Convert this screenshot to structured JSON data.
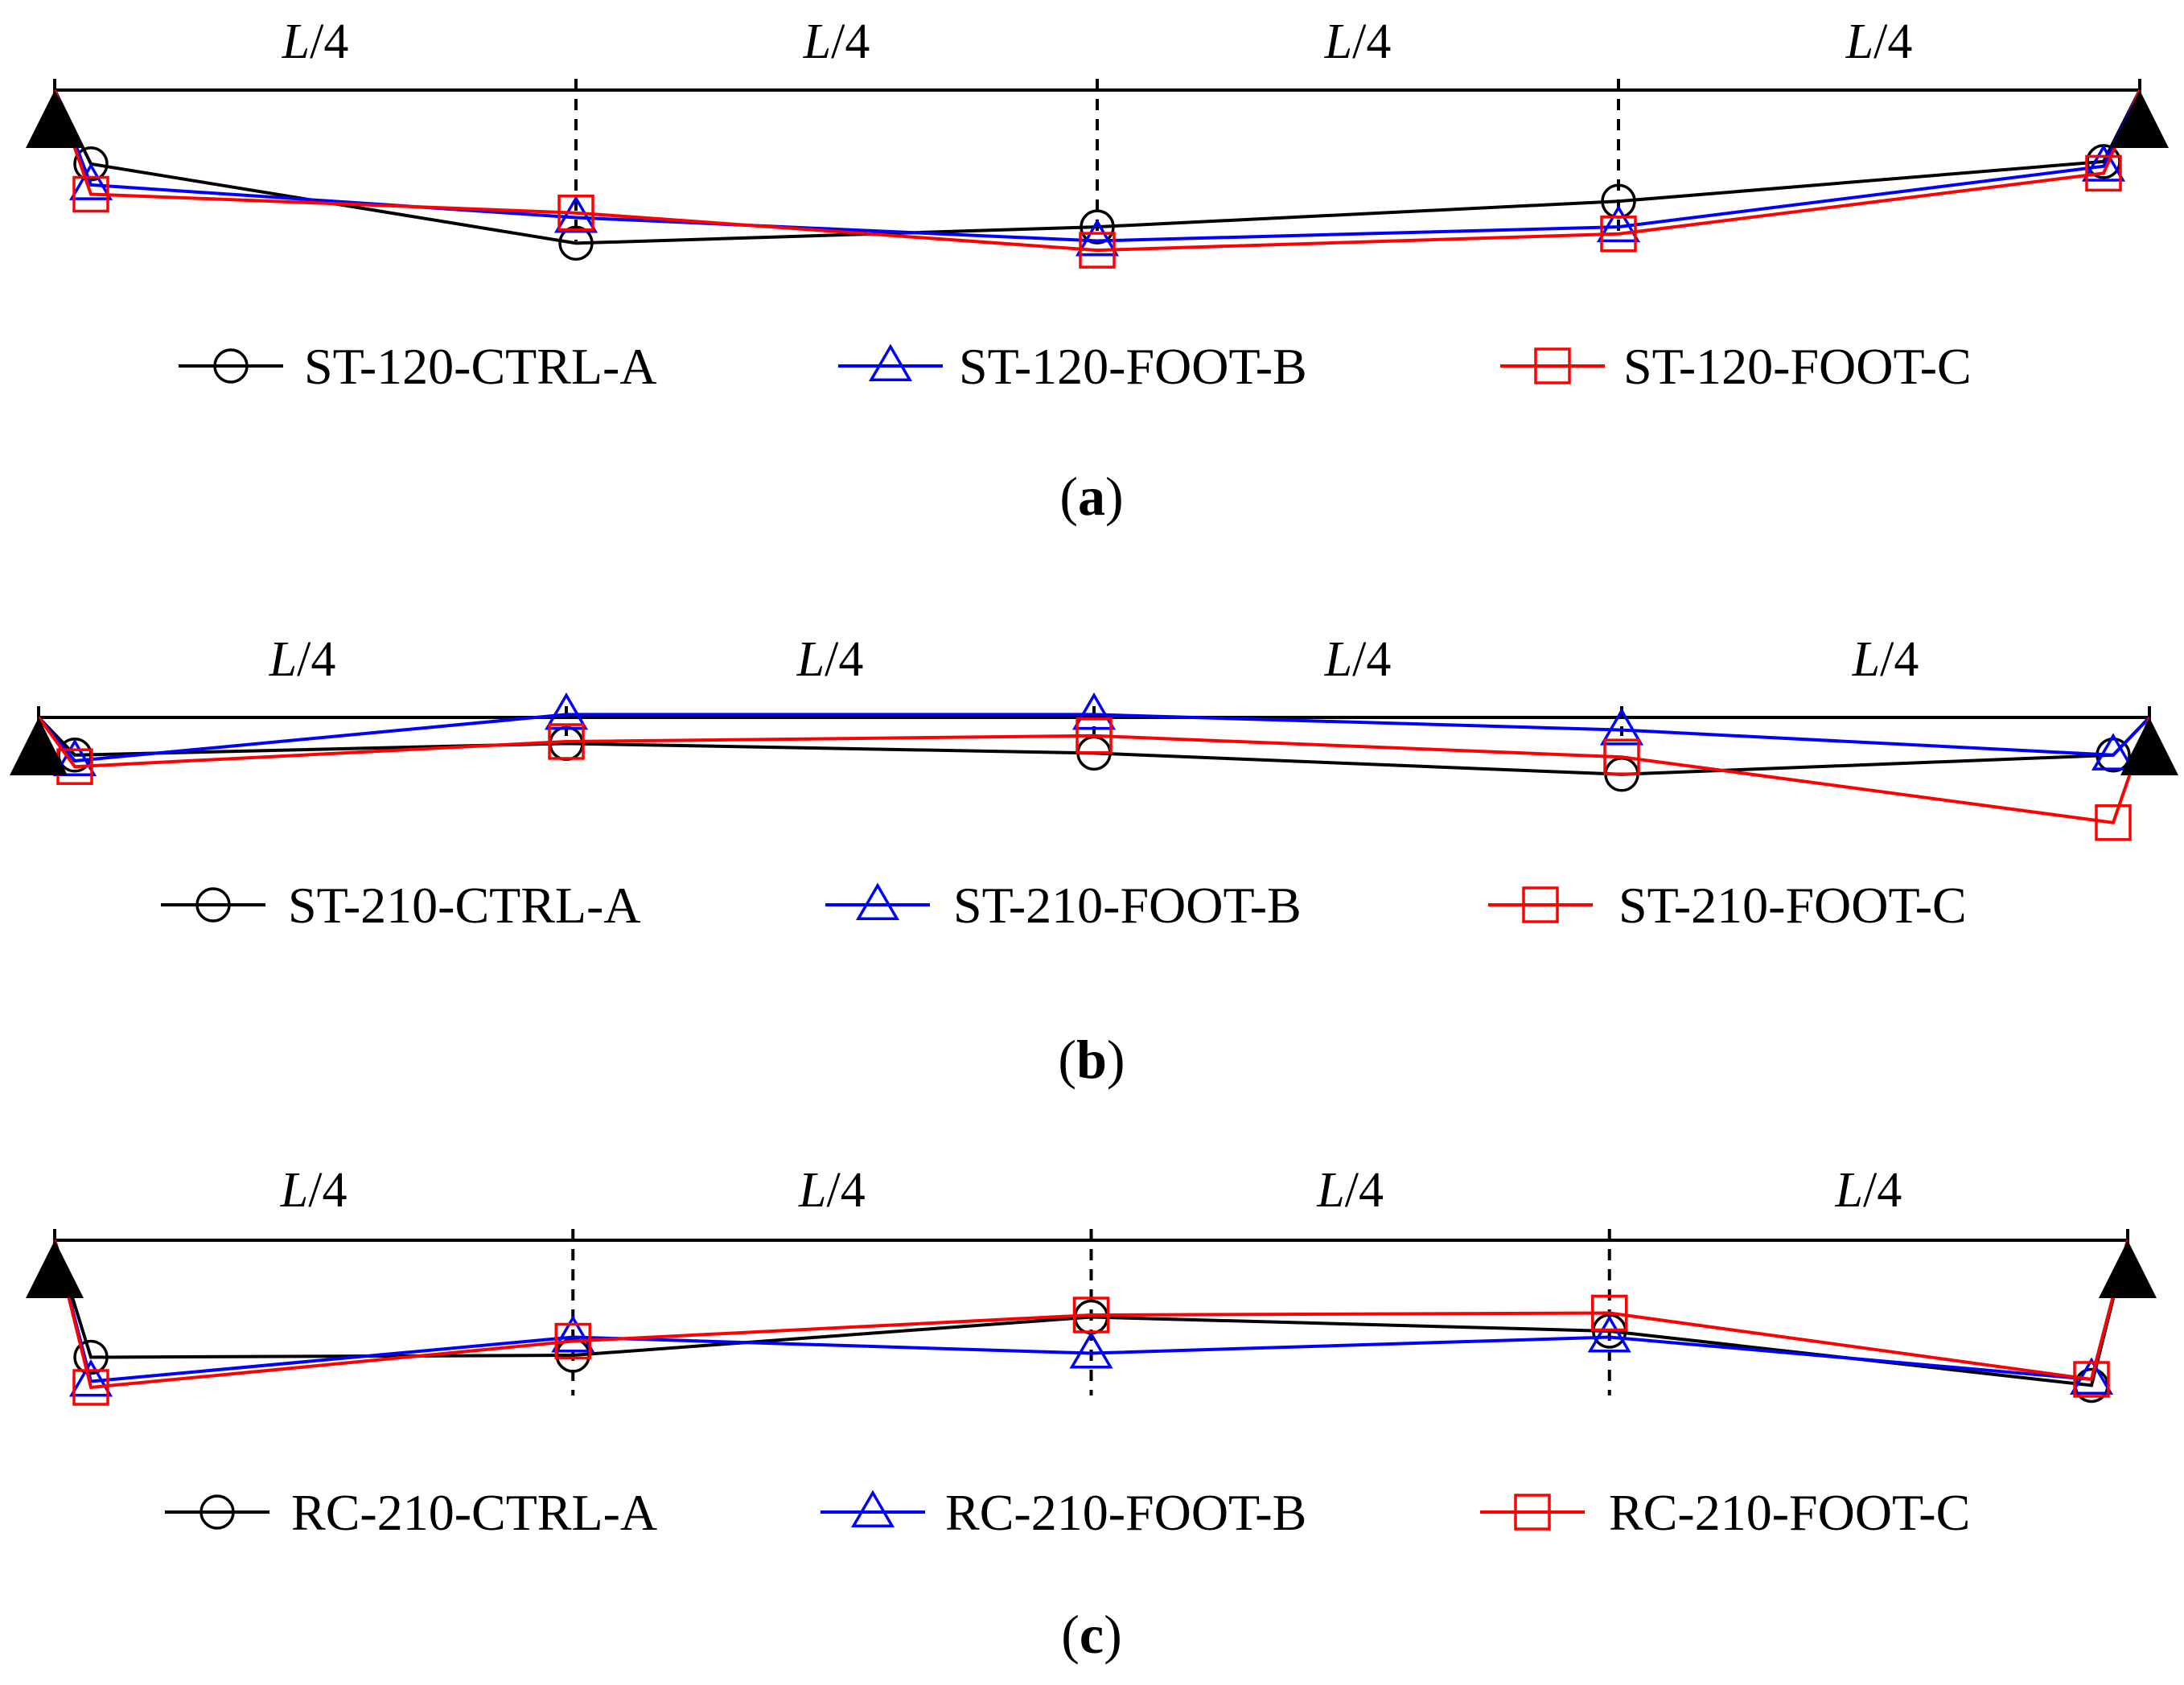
{
  "segment_label": {
    "italic": "L",
    "rest": "/4"
  },
  "colors": {
    "CTRL-A": "#000000",
    "FOOT-B": "#0000ff",
    "FOOT-C": "#ff0000"
  },
  "chart_data": [
    {
      "type": "line",
      "panel_label": {
        "open": "(",
        "letter": "a",
        "close": ")"
      },
      "x_positions": [
        "support",
        "L/4",
        "L/2",
        "3L/4",
        "support"
      ],
      "ylim": [
        -1.0,
        0.2
      ],
      "series": [
        {
          "name": "ST-120-CTRL-A",
          "marker": "circle",
          "color": "#000000",
          "values": [
            -0.22,
            -0.56,
            -0.49,
            -0.38,
            -0.21
          ]
        },
        {
          "name": "ST-120-FOOT-B",
          "marker": "triangle",
          "color": "#0000ff",
          "values": [
            -0.31,
            -0.45,
            -0.55,
            -0.49,
            -0.23
          ]
        },
        {
          "name": "ST-120-FOOT-C",
          "marker": "square",
          "color": "#ff0000",
          "values": [
            -0.35,
            -0.43,
            -0.59,
            -0.52,
            -0.26
          ]
        }
      ]
    },
    {
      "type": "line",
      "panel_label": {
        "open": "(",
        "letter": "b",
        "close": ")"
      },
      "x_positions": [
        "support",
        "L/4",
        "L/2",
        "3L/4",
        "support"
      ],
      "ylim": [
        -1.0,
        0.2
      ],
      "series": [
        {
          "name": "ST-210-CTRL-A",
          "marker": "circle",
          "color": "#000000",
          "values": [
            -0.12,
            -0.06,
            -0.11,
            -0.22,
            -0.12
          ]
        },
        {
          "name": "ST-210-FOOT-B",
          "marker": "triangle",
          "color": "#0000ff",
          "values": [
            -0.15,
            0.09,
            0.09,
            0.01,
            -0.12
          ]
        },
        {
          "name": "ST-210-FOOT-C",
          "marker": "square",
          "color": "#ff0000",
          "values": [
            -0.18,
            -0.05,
            -0.02,
            -0.13,
            -0.47
          ]
        }
      ]
    },
    {
      "type": "line",
      "panel_label": {
        "open": "(",
        "letter": "c",
        "close": ")"
      },
      "x_positions": [
        "support",
        "L/4",
        "L/2",
        "3L/4",
        "support"
      ],
      "ylim": [
        -1.0,
        0.2
      ],
      "series": [
        {
          "name": "RC-210-CTRL-A",
          "marker": "circle",
          "color": "#000000",
          "values": [
            -0.47,
            -0.46,
            -0.27,
            -0.34,
            -0.61
          ]
        },
        {
          "name": "RC-210-FOOT-B",
          "marker": "triangle",
          "color": "#0000ff",
          "values": [
            -0.59,
            -0.37,
            -0.45,
            -0.37,
            -0.58
          ]
        },
        {
          "name": "RC-210-FOOT-C",
          "marker": "square",
          "color": "#ff0000",
          "values": [
            -0.62,
            -0.39,
            -0.26,
            -0.25,
            -0.58
          ]
        }
      ]
    }
  ]
}
